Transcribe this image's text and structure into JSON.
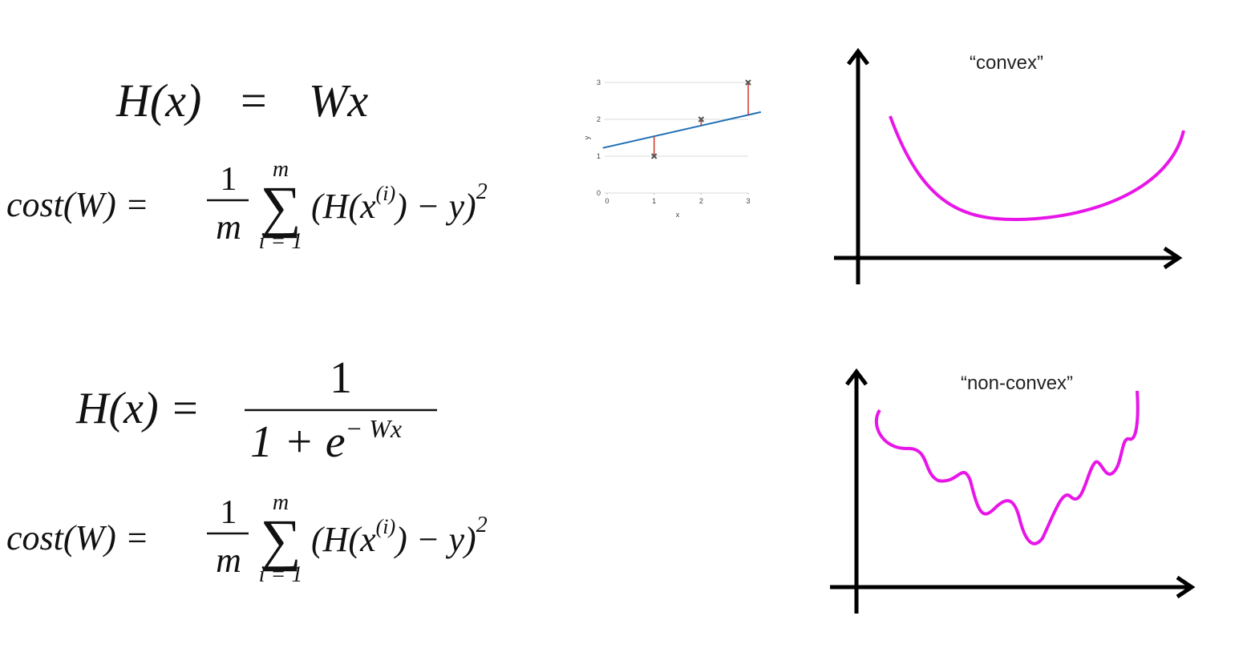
{
  "formulas": {
    "hypothesis_linear": {
      "lhs": "H(x)",
      "eq": "=",
      "rhs": "Wx"
    },
    "cost_linear": {
      "lhs": "cost(W) =",
      "numerator": "1",
      "denominator": "m",
      "sum_top": "m",
      "sum_symbol": "∑",
      "sum_bottom": "i = 1",
      "term": "(H(x",
      "superscript": "(i)",
      "term_end": ") − y)",
      "power": "2"
    },
    "hypothesis_sigmoid": {
      "lhs": "H(x) =",
      "numerator": "1",
      "denominator": "1 + e",
      "exponent": "− Wx"
    },
    "cost_sigmoid": {
      "lhs": "cost(W) =",
      "numerator": "1",
      "denominator": "m",
      "sum_top": "m",
      "sum_symbol": "∑",
      "sum_bottom": "i = 1",
      "term": "(H(x",
      "superscript": "(i)",
      "term_end": ") − y)",
      "power": "2"
    }
  },
  "chart_data": {
    "type": "scatter",
    "x": [
      1,
      2,
      3
    ],
    "values": [
      1,
      2,
      3
    ],
    "xlim": [
      0,
      3
    ],
    "ylim": [
      0,
      3
    ],
    "xticks": [
      0,
      1,
      2,
      3
    ],
    "yticks": [
      0,
      1,
      2,
      3
    ],
    "x_label": "x",
    "y_label": "y",
    "grid": true,
    "fit_line": {
      "intercept": 1.25,
      "slope": 0.29,
      "color": "#1f6fb5"
    },
    "marker_color": "#555555",
    "residual_color": "#d0352b"
  },
  "plots": {
    "convex_label": "“convex”",
    "non_convex_label": "“non-convex”"
  }
}
